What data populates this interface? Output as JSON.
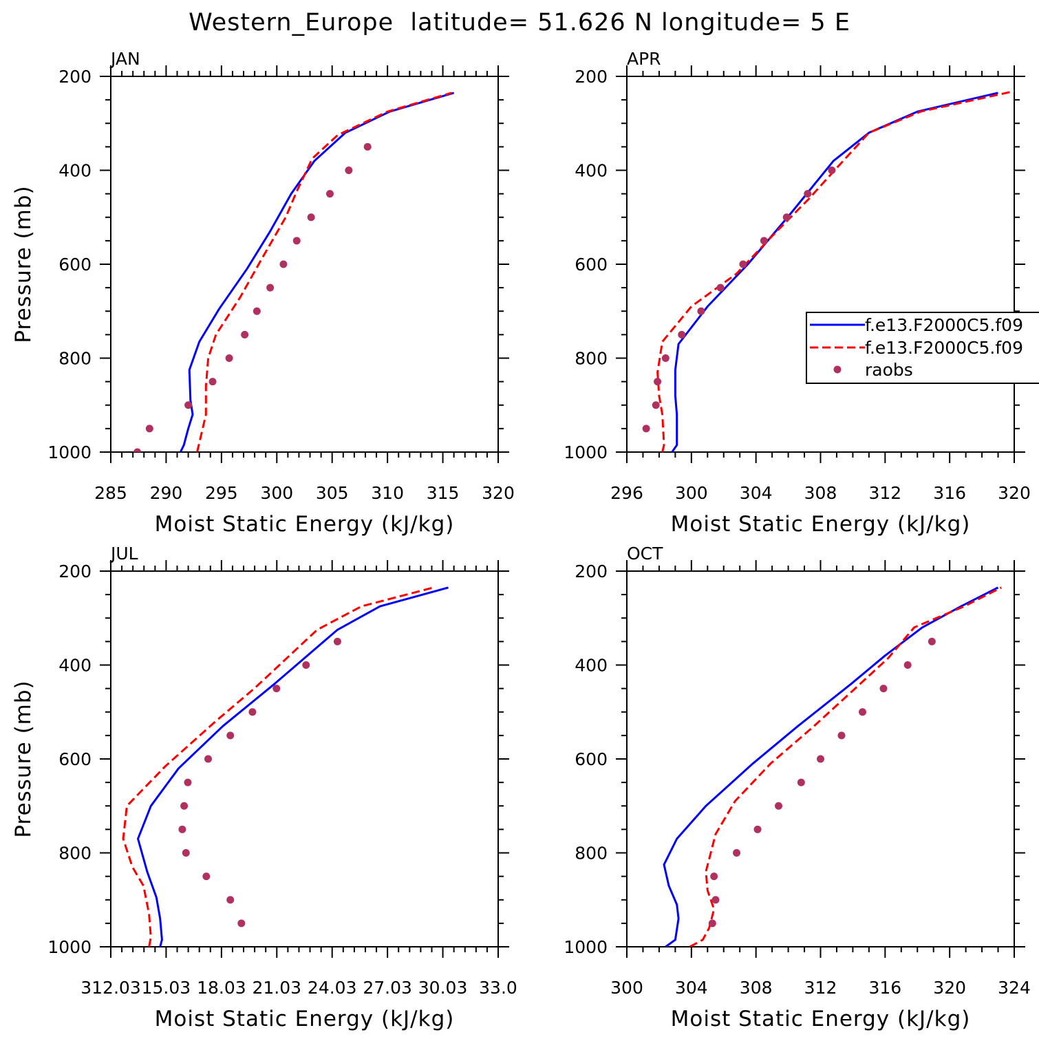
{
  "figure": {
    "title": "Western_Europe  latitude= 51.626 N longitude= 5 E"
  },
  "colors": {
    "series_1": "#0000ff",
    "series_2": "#ff0000",
    "raobs": "#b03060",
    "axes": "#000000"
  },
  "legend": {
    "placement": "panel APR, right edge, mid-height (clipped at figure edge)",
    "entries": [
      "f.e13.F2000C5.f09",
      "f.e13.F2000C5.f09",
      "raobs"
    ]
  },
  "chart_data": [
    {
      "type": "line",
      "label": "JAN",
      "xlabel": "Moist Static Energy (kJ/kg)",
      "ylabel": "Pressure (mb)",
      "xlim": [
        285,
        320
      ],
      "ylim": [
        1000,
        200
      ],
      "x_ticks": [
        "285",
        "290",
        "295",
        "300",
        "305",
        "310",
        "315",
        "320"
      ],
      "y_ticks": [
        "200",
        "400",
        "600",
        "800",
        "1000"
      ],
      "series": [
        {
          "name": "f.e13.F2000C5.f09",
          "style": "solid",
          "points": [
            [
              291.3,
              1000
            ],
            [
              291.6,
              985
            ],
            [
              292.0,
              950
            ],
            [
              292.4,
              920
            ],
            [
              292.2,
              890
            ],
            [
              292.1,
              825
            ],
            [
              293.0,
              765
            ],
            [
              294.8,
              695
            ],
            [
              297.3,
              610
            ],
            [
              299.4,
              530
            ],
            [
              301.3,
              450
            ],
            [
              303.4,
              380
            ],
            [
              306.2,
              320
            ],
            [
              310.2,
              275
            ],
            [
              316.0,
              235
            ]
          ]
        },
        {
          "name": "f.e13.F2000C5.f09",
          "style": "dashed",
          "points": [
            [
              292.8,
              1000
            ],
            [
              293.2,
              960
            ],
            [
              293.6,
              920
            ],
            [
              293.6,
              860
            ],
            [
              293.8,
              800
            ],
            [
              294.5,
              750
            ],
            [
              296.7,
              670
            ],
            [
              298.6,
              590
            ],
            [
              300.8,
              500
            ],
            [
              301.8,
              445
            ],
            [
              303.2,
              375
            ],
            [
              305.5,
              325
            ],
            [
              310.0,
              275
            ],
            [
              315.8,
              235
            ]
          ]
        },
        {
          "name": "raobs",
          "style": "markers",
          "points": [
            [
              287.4,
              1000
            ],
            [
              288.5,
              950
            ],
            [
              292.0,
              900
            ],
            [
              294.2,
              850
            ],
            [
              295.7,
              800
            ],
            [
              297.1,
              750
            ],
            [
              298.2,
              700
            ],
            [
              299.4,
              650
            ],
            [
              300.6,
              600
            ],
            [
              301.8,
              550
            ],
            [
              303.1,
              500
            ],
            [
              304.8,
              450
            ],
            [
              306.5,
              400
            ],
            [
              308.2,
              350
            ]
          ]
        }
      ]
    },
    {
      "type": "line",
      "label": "APR",
      "xlabel": "Moist Static Energy (kJ/kg)",
      "ylabel": "",
      "xlim": [
        296,
        320
      ],
      "ylim": [
        1000,
        200
      ],
      "x_ticks": [
        "296",
        "300",
        "304",
        "308",
        "312",
        "316",
        "320"
      ],
      "y_ticks": [
        "200",
        "400",
        "600",
        "800",
        "1000"
      ],
      "series": [
        {
          "name": "f.e13.F2000C5.f09",
          "style": "solid",
          "points": [
            [
              298.8,
              1000
            ],
            [
              299.1,
              985
            ],
            [
              299.1,
              920
            ],
            [
              299.0,
              880
            ],
            [
              299.0,
              825
            ],
            [
              299.2,
              770
            ],
            [
              301.0,
              690
            ],
            [
              303.5,
              600
            ],
            [
              306.2,
              490
            ],
            [
              308.8,
              380
            ],
            [
              311.0,
              320
            ],
            [
              314.0,
              275
            ],
            [
              319.0,
              235
            ]
          ]
        },
        {
          "name": "f.e13.F2000C5.f09",
          "style": "dashed",
          "points": [
            [
              298.2,
              1000
            ],
            [
              298.3,
              985
            ],
            [
              298.2,
              920
            ],
            [
              298.0,
              880
            ],
            [
              297.9,
              830
            ],
            [
              298.2,
              765
            ],
            [
              300.0,
              690
            ],
            [
              302.8,
              620
            ],
            [
              305.0,
              540
            ],
            [
              307.3,
              460
            ],
            [
              309.0,
              395
            ],
            [
              311.0,
              320
            ],
            [
              314.2,
              275
            ],
            [
              320.2,
              230
            ]
          ]
        },
        {
          "name": "raobs",
          "style": "markers",
          "points": [
            [
              297.2,
              950
            ],
            [
              297.8,
              900
            ],
            [
              297.9,
              850
            ],
            [
              298.4,
              800
            ],
            [
              299.4,
              750
            ],
            [
              300.6,
              700
            ],
            [
              301.8,
              650
            ],
            [
              303.2,
              600
            ],
            [
              304.5,
              550
            ],
            [
              305.9,
              500
            ],
            [
              307.2,
              450
            ],
            [
              308.7,
              400
            ]
          ]
        }
      ]
    },
    {
      "type": "line",
      "label": "JUL",
      "xlabel": "Moist Static Energy (kJ/kg)",
      "ylabel": "Pressure (mb)",
      "xlim": [
        312.03,
        333.0
      ],
      "ylim": [
        1000,
        200
      ],
      "x_ticks": [
        "312.03",
        "15.03",
        "18.03",
        "21.03",
        "24.03",
        "27.03",
        "30.03",
        "33.0"
      ],
      "y_ticks": [
        "200",
        "400",
        "600",
        "800",
        "1000"
      ],
      "series": [
        {
          "name": "f.e13.F2000C5.f09",
          "style": "solid",
          "points": [
            [
              314.7,
              1000
            ],
            [
              314.8,
              985
            ],
            [
              314.7,
              940
            ],
            [
              314.5,
              895
            ],
            [
              314.0,
              840
            ],
            [
              313.5,
              770
            ],
            [
              314.2,
              700
            ],
            [
              315.7,
              620
            ],
            [
              318.1,
              530
            ],
            [
              320.9,
              440
            ],
            [
              324.3,
              325
            ],
            [
              326.6,
              275
            ],
            [
              330.3,
              235
            ]
          ]
        },
        {
          "name": "f.e13.F2000C5.f09",
          "style": "dashed",
          "points": [
            [
              314.1,
              1000
            ],
            [
              314.2,
              980
            ],
            [
              314.1,
              930
            ],
            [
              313.8,
              870
            ],
            [
              313.2,
              830
            ],
            [
              312.7,
              770
            ],
            [
              312.9,
              700
            ],
            [
              315.0,
              615
            ],
            [
              317.7,
              520
            ],
            [
              319.8,
              450
            ],
            [
              323.2,
              325
            ],
            [
              325.6,
              275
            ],
            [
              329.5,
              235
            ]
          ]
        },
        {
          "name": "raobs",
          "style": "markers",
          "points": [
            [
              319.1,
              950
            ],
            [
              318.5,
              900
            ],
            [
              317.2,
              850
            ],
            [
              316.1,
              800
            ],
            [
              315.9,
              750
            ],
            [
              316.0,
              700
            ],
            [
              316.2,
              650
            ],
            [
              317.3,
              600
            ],
            [
              318.5,
              550
            ],
            [
              319.7,
              500
            ],
            [
              321.0,
              450
            ],
            [
              322.6,
              400
            ],
            [
              324.3,
              350
            ]
          ]
        }
      ]
    },
    {
      "type": "line",
      "label": "OCT",
      "xlabel": "Moist Static Energy (kJ/kg)",
      "ylabel": "",
      "xlim": [
        300,
        324
      ],
      "ylim": [
        1000,
        200
      ],
      "x_ticks": [
        "300",
        "304",
        "308",
        "312",
        "316",
        "320",
        "324"
      ],
      "y_ticks": [
        "200",
        "400",
        "600",
        "800",
        "1000"
      ],
      "series": [
        {
          "name": "f.e13.F2000C5.f09",
          "style": "solid",
          "points": [
            [
              302.4,
              1000
            ],
            [
              303.0,
              985
            ],
            [
              303.2,
              940
            ],
            [
              303.1,
              910
            ],
            [
              302.6,
              870
            ],
            [
              302.3,
              825
            ],
            [
              303.1,
              770
            ],
            [
              304.9,
              700
            ],
            [
              307.8,
              610
            ],
            [
              310.6,
              530
            ],
            [
              313.9,
              440
            ],
            [
              316.0,
              380
            ],
            [
              318.3,
              320
            ],
            [
              320.7,
              275
            ],
            [
              323.0,
              235
            ]
          ]
        },
        {
          "name": "f.e13.F2000C5.f09",
          "style": "dashed",
          "points": [
            [
              303.9,
              1000
            ],
            [
              304.7,
              985
            ],
            [
              305.1,
              960
            ],
            [
              305.4,
              920
            ],
            [
              305.0,
              880
            ],
            [
              304.9,
              840
            ],
            [
              305.5,
              760
            ],
            [
              306.7,
              690
            ],
            [
              308.9,
              610
            ],
            [
              311.6,
              530
            ],
            [
              314.3,
              445
            ],
            [
              316.2,
              385
            ],
            [
              317.8,
              320
            ],
            [
              320.9,
              275
            ],
            [
              323.2,
              235
            ]
          ]
        },
        {
          "name": "raobs",
          "style": "markers",
          "points": [
            [
              305.3,
              950
            ],
            [
              305.5,
              900
            ],
            [
              305.4,
              850
            ],
            [
              306.8,
              800
            ],
            [
              308.1,
              750
            ],
            [
              309.4,
              700
            ],
            [
              310.8,
              650
            ],
            [
              312.0,
              600
            ],
            [
              313.3,
              550
            ],
            [
              314.6,
              500
            ],
            [
              315.9,
              450
            ],
            [
              317.4,
              400
            ],
            [
              318.9,
              350
            ]
          ]
        }
      ]
    }
  ]
}
